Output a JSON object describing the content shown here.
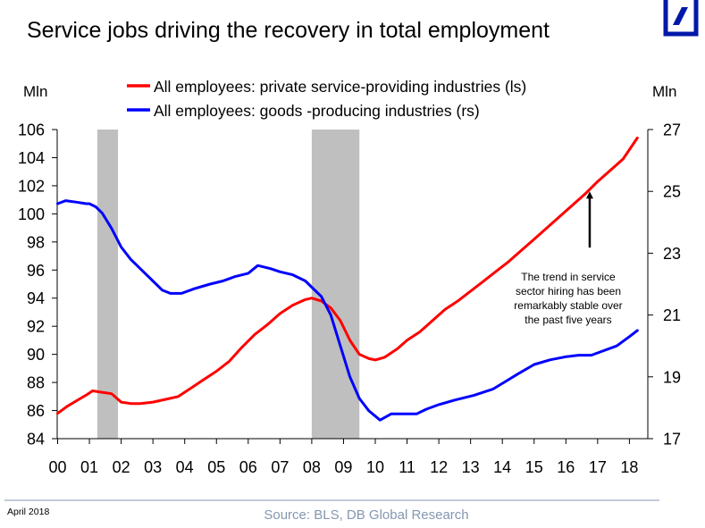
{
  "logo": {
    "name": "deutsche-bank-logo",
    "color": "#0018a8"
  },
  "footer": {
    "date": "April 2018",
    "source": "Source: BLS, DB Global Research"
  },
  "chart_data": {
    "type": "line",
    "title": "Service jobs driving the recovery in total employment",
    "ylabel_left": "Mln",
    "ylabel_right": "Mln",
    "xlabel": "",
    "xlim": [
      2000,
      2018.5
    ],
    "ylim_left": [
      84,
      106
    ],
    "ylim_right": [
      17,
      27
    ],
    "x_ticks": [
      2000,
      2001,
      2002,
      2003,
      2004,
      2005,
      2006,
      2007,
      2008,
      2009,
      2010,
      2011,
      2012,
      2013,
      2014,
      2015,
      2016,
      2017,
      2018
    ],
    "x_tick_labels": [
      "00",
      "01",
      "02",
      "03",
      "04",
      "05",
      "06",
      "07",
      "08",
      "09",
      "10",
      "11",
      "12",
      "13",
      "14",
      "15",
      "16",
      "17",
      "18"
    ],
    "y_ticks_left": [
      "106",
      "104",
      "102",
      "100",
      "98",
      "96",
      "94",
      "92",
      "90",
      "88",
      "86",
      "84"
    ],
    "y_ticks_right": [
      "27",
      "25",
      "23",
      "21",
      "19",
      "17"
    ],
    "grid": false,
    "legend_position": "top-center",
    "recessions": [
      {
        "start": 2001.25,
        "end": 2001.9
      },
      {
        "start": 2008.0,
        "end": 2009.5
      }
    ],
    "recession_color": "#bfbfbf",
    "series": [
      {
        "name": "All employees: private service-providing industries (ls)",
        "axis": "left",
        "color": "#ff0000",
        "x": [
          2000.0,
          2000.3,
          2000.6,
          2000.9,
          2001.1,
          2001.4,
          2001.7,
          2002.0,
          2002.3,
          2002.6,
          2003.0,
          2003.4,
          2003.8,
          2004.2,
          2004.6,
          2005.0,
          2005.4,
          2005.8,
          2006.2,
          2006.6,
          2007.0,
          2007.4,
          2007.8,
          2008.0,
          2008.3,
          2008.6,
          2008.9,
          2009.2,
          2009.5,
          2009.8,
          2010.0,
          2010.3,
          2010.7,
          2011.0,
          2011.4,
          2011.8,
          2012.2,
          2012.6,
          2013.0,
          2013.4,
          2013.8,
          2014.2,
          2014.6,
          2015.0,
          2015.4,
          2015.8,
          2016.2,
          2016.6,
          2017.0,
          2017.4,
          2017.8,
          2018.25
        ],
        "values": [
          85.8,
          86.3,
          86.7,
          87.1,
          87.4,
          87.3,
          87.2,
          86.6,
          86.5,
          86.5,
          86.6,
          86.8,
          87.0,
          87.6,
          88.2,
          88.8,
          89.5,
          90.5,
          91.4,
          92.1,
          92.9,
          93.5,
          93.9,
          94.0,
          93.8,
          93.3,
          92.4,
          91.0,
          90.0,
          89.7,
          89.6,
          89.8,
          90.4,
          91.0,
          91.6,
          92.4,
          93.2,
          93.8,
          94.5,
          95.2,
          95.9,
          96.6,
          97.4,
          98.2,
          99.0,
          99.8,
          100.6,
          101.4,
          102.3,
          103.1,
          103.9,
          105.4
        ]
      },
      {
        "name": "All employees: goods -producing industries (rs)",
        "axis": "right",
        "color": "#0000ff",
        "x": [
          2000.0,
          2000.25,
          2000.6,
          2000.9,
          2001.0,
          2001.2,
          2001.4,
          2001.7,
          2002.0,
          2002.3,
          2002.7,
          2003.0,
          2003.3,
          2003.55,
          2003.9,
          2004.3,
          2004.8,
          2005.2,
          2005.6,
          2006.0,
          2006.3,
          2006.7,
          2007.0,
          2007.4,
          2007.8,
          2008.0,
          2008.3,
          2008.6,
          2008.9,
          2009.2,
          2009.5,
          2009.8,
          2010.15,
          2010.5,
          2010.9,
          2011.3,
          2011.6,
          2012.0,
          2012.5,
          2013.1,
          2013.7,
          2014.1,
          2014.5,
          2015.0,
          2015.5,
          2016.0,
          2016.4,
          2016.8,
          2017.2,
          2017.6,
          2018.0,
          2018.25
        ],
        "values": [
          24.6,
          24.7,
          24.65,
          24.6,
          24.6,
          24.5,
          24.3,
          23.8,
          23.2,
          22.8,
          22.4,
          22.1,
          21.8,
          21.7,
          21.7,
          21.85,
          22.0,
          22.1,
          22.25,
          22.35,
          22.6,
          22.5,
          22.4,
          22.3,
          22.1,
          21.9,
          21.6,
          21.0,
          20.0,
          19.0,
          18.3,
          17.9,
          17.6,
          17.8,
          17.8,
          17.8,
          17.95,
          18.1,
          18.25,
          18.4,
          18.6,
          18.85,
          19.1,
          19.4,
          19.55,
          19.65,
          19.7,
          19.7,
          19.85,
          20.0,
          20.3,
          20.5
        ]
      }
    ],
    "annotation": {
      "lines": [
        "The trend in service",
        "sector hiring has been",
        "remarkably stable over",
        "the past five years"
      ],
      "arrow_x": 2016.75,
      "arrow_from_left_value": 97.6,
      "arrow_to_left_value": 101.6
    }
  }
}
